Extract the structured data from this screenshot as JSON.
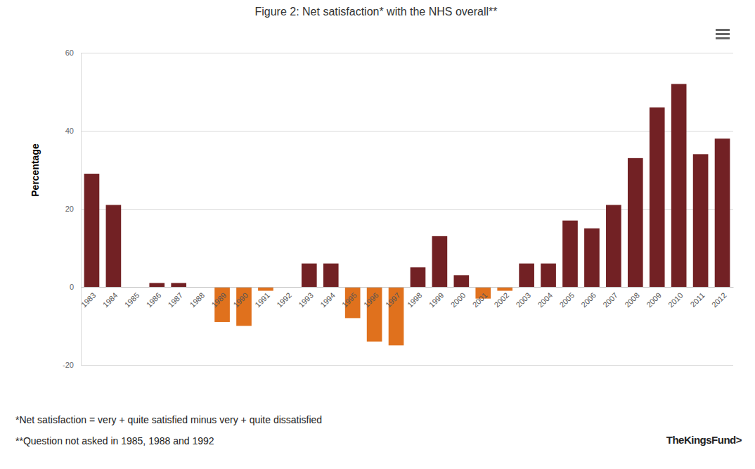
{
  "chart_data": {
    "type": "bar",
    "title": "Figure 2: Net satisfaction* with the NHS overall**",
    "y_label": "Percentage",
    "categories": [
      "1983",
      "1984",
      "1985",
      "1986",
      "1987",
      "1988",
      "1989",
      "1990",
      "1991",
      "1992",
      "1993",
      "1994",
      "1995",
      "1996",
      "1997",
      "1998",
      "1999",
      "2000",
      "2001",
      "2002",
      "2003",
      "2004",
      "2005",
      "2006",
      "2007",
      "2008",
      "2009",
      "2010",
      "2011",
      "2012"
    ],
    "values": [
      29,
      21,
      null,
      1,
      1,
      null,
      -9,
      -10,
      -1,
      null,
      6,
      6,
      -8,
      -14,
      -15,
      5,
      13,
      3,
      -3,
      -1,
      6,
      6,
      17,
      15,
      21,
      33,
      46,
      52,
      34,
      38
    ],
    "colors": [
      "#722124",
      "#722124",
      null,
      "#722124",
      "#722124",
      null,
      "#e0711d",
      "#e0711d",
      "#e0711d",
      null,
      "#722124",
      "#722124",
      "#e0711d",
      "#e0711d",
      "#e0711d",
      "#722124",
      "#722124",
      "#722124",
      "#e0711d",
      "#e0711d",
      "#722124",
      "#722124",
      "#722124",
      "#722124",
      "#722124",
      "#722124",
      "#722124",
      "#722124",
      "#722124",
      "#722124"
    ],
    "ylim": [
      -20,
      60
    ],
    "yticks": [
      -20,
      0,
      20,
      40,
      60
    ],
    "grid": true,
    "footnotes": [
      "*Net satisfaction = very + quite satisfied minus very + quite dissatisfied",
      "**Question not asked in 1985, 1988 and 1992"
    ],
    "source": "TheKingsFund>"
  }
}
